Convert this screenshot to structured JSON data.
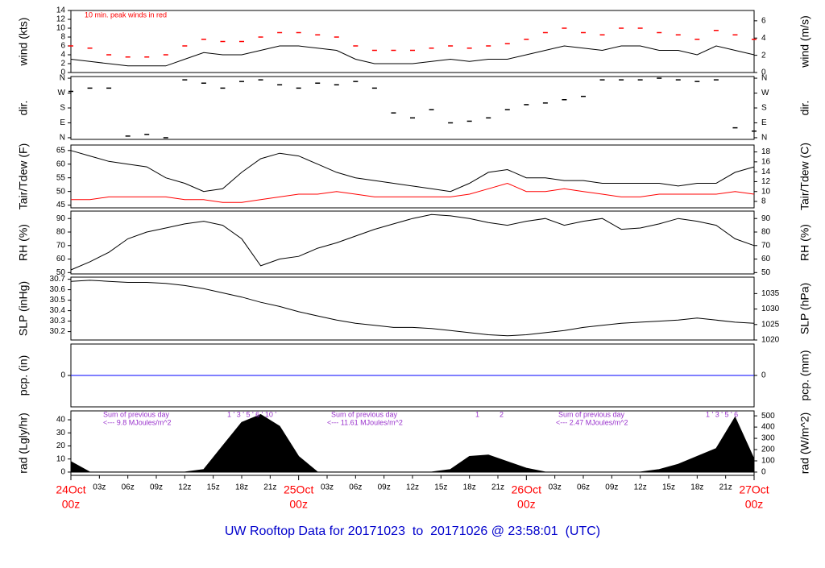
{
  "chart_data": [
    {
      "type": "line",
      "ylabel": "wind (kts)",
      "y2label": "wind (m/s)",
      "annotation": "10 min. peak winds in red",
      "x": [
        0,
        2,
        4,
        6,
        8,
        10,
        12,
        14,
        16,
        18,
        20,
        22,
        24,
        26,
        28,
        30,
        32,
        34,
        36,
        38,
        40,
        42,
        44,
        46,
        48,
        50,
        52,
        54,
        56,
        58,
        60,
        62,
        64,
        66,
        68,
        70,
        72
      ],
      "xlim": [
        0,
        72
      ],
      "ylim": [
        0,
        14
      ],
      "yticks": [
        0,
        2,
        4,
        6,
        8,
        10,
        12,
        14
      ],
      "y2lim": [
        0,
        7.2
      ],
      "y2ticks": [
        0,
        2,
        4,
        6
      ],
      "series": [
        {
          "name": "wind",
          "type": "line",
          "color": "#000000",
          "values": [
            3,
            2.5,
            2,
            1.5,
            1.5,
            1.5,
            3,
            4.5,
            4,
            4,
            5,
            6,
            6,
            5.5,
            5,
            3,
            2,
            2,
            2,
            2.5,
            3,
            2.5,
            3,
            3,
            4,
            5,
            6,
            5.5,
            5,
            6,
            6,
            5,
            5,
            4,
            6,
            5,
            4
          ]
        },
        {
          "name": "peak",
          "type": "scatter",
          "color": "#ff0000",
          "values": [
            6,
            5.5,
            4,
            3.5,
            3.5,
            4,
            6,
            7.5,
            7,
            7,
            8,
            9,
            9,
            8.5,
            8,
            6,
            5,
            5,
            5,
            5.5,
            6,
            5.5,
            6,
            6.5,
            7.5,
            9,
            10,
            9,
            8.5,
            10,
            10,
            9,
            8.5,
            7.5,
            9.5,
            8.5,
            7.5
          ]
        }
      ]
    },
    {
      "type": "scatter",
      "ylabel": "dir.",
      "y2label": "dir.",
      "x": [
        0,
        2,
        4,
        6,
        8,
        10,
        12,
        14,
        16,
        18,
        20,
        22,
        24,
        26,
        28,
        30,
        32,
        34,
        36,
        38,
        40,
        42,
        44,
        46,
        48,
        50,
        52,
        54,
        56,
        58,
        60,
        62,
        64,
        66,
        68,
        70,
        72
      ],
      "xlim": [
        0,
        72
      ],
      "ylim": [
        -10,
        370
      ],
      "yticks": [
        {
          "value": 0,
          "label": "N"
        },
        {
          "value": 90,
          "label": "E"
        },
        {
          "value": 180,
          "label": "S"
        },
        {
          "value": 270,
          "label": "W"
        },
        {
          "value": 360,
          "label": "N"
        }
      ],
      "y2lim": [
        -10,
        370
      ],
      "y2ticks": [
        {
          "value": 0,
          "label": "N"
        },
        {
          "value": 90,
          "label": "E"
        },
        {
          "value": 180,
          "label": "S"
        },
        {
          "value": 270,
          "label": "W"
        },
        {
          "value": 360,
          "label": "N"
        }
      ],
      "series": [
        {
          "name": "dir",
          "type": "scatter",
          "color": "#000000",
          "values": [
            280,
            300,
            300,
            10,
            20,
            0,
            350,
            330,
            300,
            340,
            350,
            320,
            300,
            330,
            320,
            340,
            300,
            150,
            120,
            170,
            90,
            100,
            120,
            170,
            200,
            210,
            230,
            250,
            350,
            350,
            350,
            360,
            350,
            340,
            350,
            60,
            40
          ]
        }
      ]
    },
    {
      "type": "line",
      "ylabel": "Tair/Tdew (F)",
      "y2label": "Tair/Tdew (C)",
      "x": [
        0,
        2,
        4,
        6,
        8,
        10,
        12,
        14,
        16,
        18,
        20,
        22,
        24,
        26,
        28,
        30,
        32,
        34,
        36,
        38,
        40,
        42,
        44,
        46,
        48,
        50,
        52,
        54,
        56,
        58,
        60,
        62,
        64,
        66,
        68,
        70,
        72
      ],
      "xlim": [
        0,
        72
      ],
      "ylim": [
        44,
        67
      ],
      "yticks": [
        45,
        50,
        55,
        60,
        65
      ],
      "y2lim": [
        6.7,
        19.4
      ],
      "y2ticks": [
        8,
        10,
        12,
        14,
        16,
        18
      ],
      "series": [
        {
          "name": "Tair",
          "type": "line",
          "color": "#000000",
          "values": [
            65,
            63,
            61,
            60,
            59,
            55,
            53,
            50,
            51,
            57,
            62,
            64,
            63,
            60,
            57,
            55,
            54,
            53,
            52,
            51,
            50,
            53,
            57,
            58,
            55,
            55,
            54,
            54,
            53,
            53,
            53,
            53,
            52,
            53,
            53,
            57,
            59
          ]
        },
        {
          "name": "Tdew",
          "type": "line",
          "color": "#ff0000",
          "values": [
            47,
            47,
            48,
            48,
            48,
            48,
            47,
            47,
            46,
            46,
            47,
            48,
            49,
            49,
            50,
            49,
            48,
            48,
            48,
            48,
            48,
            49,
            51,
            53,
            50,
            50,
            51,
            50,
            49,
            48,
            48,
            49,
            49,
            49,
            49,
            50,
            49
          ]
        }
      ]
    },
    {
      "type": "line",
      "ylabel": "RH (%)",
      "y2label": "RH (%)",
      "x": [
        0,
        2,
        4,
        6,
        8,
        10,
        12,
        14,
        16,
        18,
        20,
        22,
        24,
        26,
        28,
        30,
        32,
        34,
        36,
        38,
        40,
        42,
        44,
        46,
        48,
        50,
        52,
        54,
        56,
        58,
        60,
        62,
        64,
        66,
        68,
        70,
        72
      ],
      "xlim": [
        0,
        72
      ],
      "ylim": [
        49,
        95.5
      ],
      "yticks": [
        50,
        60,
        70,
        80,
        90
      ],
      "y2lim": [
        49,
        95.5
      ],
      "y2ticks": [
        50,
        60,
        70,
        80,
        90
      ],
      "series": [
        {
          "name": "RH",
          "type": "line",
          "color": "#000000",
          "values": [
            52,
            58,
            65,
            75,
            80,
            83,
            86,
            88,
            85,
            75,
            55,
            60,
            62,
            68,
            72,
            77,
            82,
            86,
            90,
            93,
            92,
            90,
            87,
            85,
            88,
            90,
            85,
            88,
            90,
            82,
            83,
            86,
            90,
            88,
            85,
            75,
            70
          ]
        }
      ]
    },
    {
      "type": "line",
      "ylabel": "SLP (inHg)",
      "y2label": "SLP (hPa)",
      "x": [
        0,
        2,
        4,
        6,
        8,
        10,
        12,
        14,
        16,
        18,
        20,
        22,
        24,
        26,
        28,
        30,
        32,
        34,
        36,
        38,
        40,
        42,
        44,
        46,
        48,
        50,
        52,
        54,
        56,
        58,
        60,
        62,
        64,
        66,
        68,
        70,
        72
      ],
      "xlim": [
        0,
        72
      ],
      "ylim": [
        30.12,
        30.72
      ],
      "yticks": [
        30.2,
        30.3,
        30.4,
        30.5,
        30.6,
        30.7
      ],
      "y2lim": [
        1020,
        1040.3
      ],
      "y2ticks": [
        1020,
        1025,
        1030,
        1035
      ],
      "series": [
        {
          "name": "SLP",
          "type": "line",
          "color": "#000000",
          "values": [
            30.68,
            30.69,
            30.68,
            30.67,
            30.67,
            30.66,
            30.64,
            30.61,
            30.57,
            30.53,
            30.48,
            30.44,
            30.39,
            30.35,
            30.31,
            30.28,
            30.26,
            30.24,
            30.24,
            30.23,
            30.21,
            30.19,
            30.17,
            30.16,
            30.17,
            30.19,
            30.21,
            30.24,
            30.26,
            30.28,
            30.29,
            30.3,
            30.31,
            30.33,
            30.31,
            30.29,
            30.28
          ]
        }
      ]
    },
    {
      "type": "line",
      "ylabel": "pcp. (in)",
      "y2label": "pcp. (mm)",
      "x": [
        0,
        2,
        4,
        6,
        8,
        10,
        12,
        14,
        16,
        18,
        20,
        22,
        24,
        26,
        28,
        30,
        32,
        34,
        36,
        38,
        40,
        42,
        44,
        46,
        48,
        50,
        52,
        54,
        56,
        58,
        60,
        62,
        64,
        66,
        68,
        70,
        72
      ],
      "xlim": [
        0,
        72
      ],
      "ylim": [
        -1,
        1
      ],
      "yticks": [
        0
      ],
      "y2lim": [
        -25.4,
        25.4
      ],
      "y2ticks": [
        0
      ],
      "series": [
        {
          "name": "pcp",
          "type": "line",
          "color": "#0000ff",
          "values": [
            0,
            0,
            0,
            0,
            0,
            0,
            0,
            0,
            0,
            0,
            0,
            0,
            0,
            0,
            0,
            0,
            0,
            0,
            0,
            0,
            0,
            0,
            0,
            0,
            0,
            0,
            0,
            0,
            0,
            0,
            0,
            0,
            0,
            0,
            0,
            0,
            0
          ]
        }
      ]
    },
    {
      "type": "line",
      "ylabel": "rad (Lgly/hr)",
      "y2label": "rad (W/m^2)",
      "title": "UW Rooftop Data for 20171023  to  20171026 @ 23:58:01  (UTC)",
      "annotations": [
        "Sum of previous day",
        "<--- 9.8 MJoules/m^2",
        "1 ' 3 ' 5 ' 6 ' 10 '",
        "Sum of previous day",
        "<--- 11.61 MJoules/m^2",
        "1          2",
        "Sum of previous day",
        "<--- 2.47 MJoules/m^2",
        "1 ' 3 ' 5 ' 6"
      ],
      "x": [
        0,
        2,
        4,
        6,
        8,
        10,
        12,
        14,
        16,
        18,
        20,
        22,
        24,
        26,
        28,
        30,
        32,
        34,
        36,
        38,
        40,
        42,
        44,
        46,
        48,
        50,
        52,
        54,
        56,
        58,
        60,
        62,
        64,
        66,
        68,
        70,
        72
      ],
      "xlim": [
        0,
        72
      ],
      "ylim": [
        -2.5,
        46.8
      ],
      "yticks": [
        0,
        10,
        20,
        30,
        40
      ],
      "y2lim": [
        -29,
        544
      ],
      "y2ticks": [
        0,
        100,
        200,
        300,
        400,
        500
      ],
      "xticks": [
        {
          "value": 3,
          "label": "03z"
        },
        {
          "value": 6,
          "label": "06z"
        },
        {
          "value": 9,
          "label": "09z"
        },
        {
          "value": 12,
          "label": "12z"
        },
        {
          "value": 15,
          "label": "15z"
        },
        {
          "value": 18,
          "label": "18z"
        },
        {
          "value": 21,
          "label": "21z"
        },
        {
          "value": 27,
          "label": "03z"
        },
        {
          "value": 30,
          "label": "06z"
        },
        {
          "value": 33,
          "label": "09z"
        },
        {
          "value": 36,
          "label": "12z"
        },
        {
          "value": 39,
          "label": "15z"
        },
        {
          "value": 42,
          "label": "18z"
        },
        {
          "value": 45,
          "label": "21z"
        },
        {
          "value": 51,
          "label": "03z"
        },
        {
          "value": 54,
          "label": "06z"
        },
        {
          "value": 57,
          "label": "09z"
        },
        {
          "value": 60,
          "label": "12z"
        },
        {
          "value": 63,
          "label": "15z"
        },
        {
          "value": 66,
          "label": "18z"
        },
        {
          "value": 69,
          "label": "21z"
        }
      ],
      "day_ticks": [
        {
          "value": 0,
          "label": "24Oct"
        },
        {
          "value": 24,
          "label": "25Oct"
        },
        {
          "value": 48,
          "label": "26Oct"
        },
        {
          "value": 72,
          "label": "27Oct"
        }
      ],
      "day_hour_label": "00z",
      "series": [
        {
          "name": "rad",
          "type": "area",
          "color": "#000000",
          "values": [
            8,
            0,
            0,
            0,
            0,
            0,
            0,
            2,
            20,
            38,
            44,
            35,
            12,
            0,
            0,
            0,
            0,
            0,
            0,
            0,
            2,
            12,
            13,
            8,
            3,
            0,
            0,
            0,
            0,
            0,
            0,
            2,
            6,
            12,
            18,
            42,
            10
          ]
        }
      ]
    }
  ]
}
